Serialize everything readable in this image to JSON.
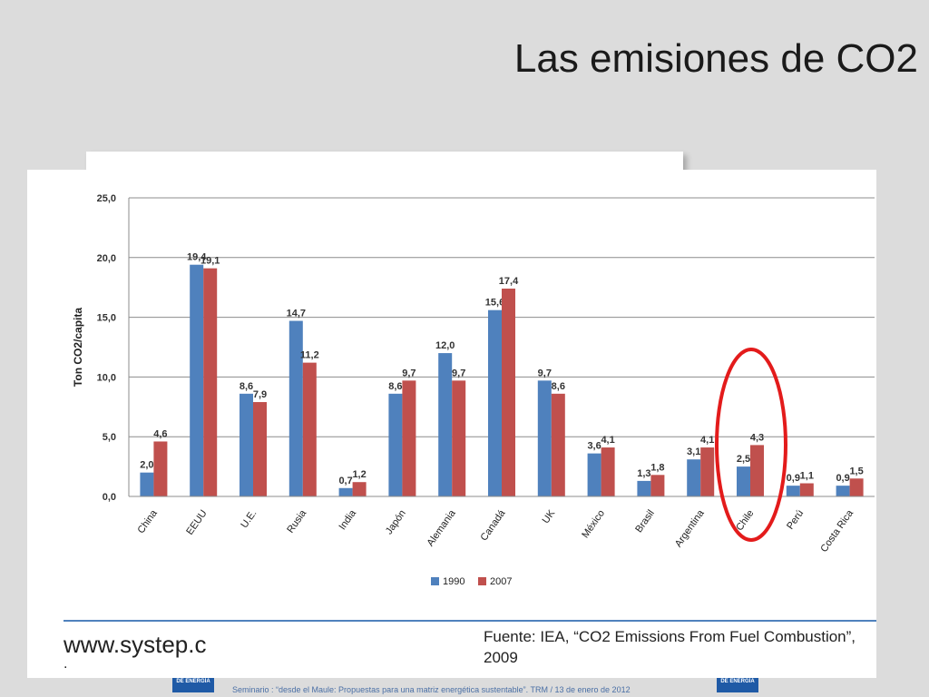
{
  "slide": {
    "title": "Las emisiones de CO2",
    "website": "www.systep.c",
    "website_dot": ".",
    "source": "Fuente: IEA, “CO2 Emissions From Fuel Combustion”, 2009",
    "logo_text": "DE ENERGÍA",
    "caption": "Seminario : “desde el Maule: Propuestas para una matriz energética sustentable”.  TRM  /  13 de enero de 2012"
  },
  "chart_data": {
    "type": "bar",
    "title": "",
    "xlabel": "",
    "ylabel": "Ton CO2/capita",
    "ylim": [
      0,
      25
    ],
    "yticks": [
      "0,0",
      "5,0",
      "10,0",
      "15,0",
      "20,0",
      "25,0"
    ],
    "grid": true,
    "legend_position": "bottom",
    "categories": [
      "China",
      "EEUU",
      "U.E.",
      "Rusia",
      "India",
      "Japón",
      "Alemania",
      "Canadá",
      "UK",
      "México",
      "Brasil",
      "Argentina",
      "Chile",
      "Perú",
      "Costa Rica"
    ],
    "series": [
      {
        "name": "1990",
        "color": "#4f81bd",
        "values": [
          2.0,
          19.4,
          8.6,
          14.7,
          0.7,
          8.6,
          12.0,
          15.6,
          9.7,
          3.6,
          1.3,
          3.1,
          2.5,
          0.9,
          0.9
        ],
        "labels": [
          "2,0",
          "19,4",
          "8,6",
          "14,7",
          "0,7",
          "8,6",
          "12,0",
          "15,6",
          "9,7",
          "3,6",
          "1,3",
          "3,1",
          "2,5",
          "0,9",
          "0,9"
        ]
      },
      {
        "name": "2007",
        "color": "#c0504d",
        "values": [
          4.6,
          19.1,
          7.9,
          11.2,
          1.2,
          9.7,
          9.7,
          17.4,
          8.6,
          4.1,
          1.8,
          4.1,
          4.3,
          1.1,
          1.5
        ],
        "labels": [
          "4,6",
          "19,1",
          "7,9",
          "11,2",
          "1,2",
          "9,7",
          "9,7",
          "17,4",
          "8,6",
          "4,1",
          "1,8",
          "4,1",
          "4,3",
          "1,1",
          "1,5"
        ]
      }
    ],
    "highlight_category": "Chile",
    "highlight_color": "#e31b1b"
  }
}
